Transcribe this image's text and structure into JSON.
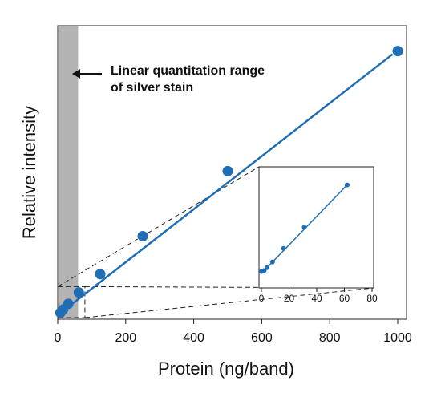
{
  "chart_data": [
    {
      "type": "scatter",
      "title": "",
      "xlabel": "Protein (ng/band)",
      "ylabel": "Relative intensity",
      "xlim": [
        0,
        1000
      ],
      "xticks": [
        0,
        200,
        400,
        600,
        800,
        1000
      ],
      "yticks": [],
      "grid": false,
      "highlight_band": {
        "x_from": 0,
        "x_to": 60,
        "color": "#b3b3b3"
      },
      "annotation": {
        "lines": [
          "Linear quantitation range",
          "of silver stain"
        ],
        "arrow": "left"
      },
      "series": [
        {
          "marker_color": "#1f6eb5",
          "line_color": "#1f6eb5",
          "x": [
            8,
            16,
            31,
            62,
            125,
            250,
            500,
            1000
          ],
          "y": [
            4,
            9,
            18,
            36,
            65,
            125,
            228,
            418
          ],
          "fit_line": {
            "x": [
              0,
              985
            ],
            "y": [
              0,
              413
            ]
          }
        }
      ]
    },
    {
      "type": "scatter",
      "title": "",
      "xlabel": "",
      "ylabel": "",
      "xlim": [
        0,
        80
      ],
      "xticks": [
        0,
        20,
        40,
        60,
        80
      ],
      "grid": false,
      "inset": true,
      "zoom_region": {
        "x": [
          0,
          80
        ],
        "y": [
          0,
          49
        ]
      },
      "series": [
        {
          "marker_color": "#1f6eb5",
          "line_color": "#1f6eb5",
          "x": [
            0,
            2,
            4,
            8,
            16,
            31,
            62
          ],
          "y": [
            1,
            1.5,
            3,
            6,
            13,
            24,
            46
          ],
          "fit_line": {
            "x": [
              0,
              62
            ],
            "y": [
              0,
              46
            ]
          }
        }
      ]
    }
  ],
  "colors": {
    "accent": "#1f6eb5",
    "band": "#b3b3b3",
    "text": "#111111"
  }
}
